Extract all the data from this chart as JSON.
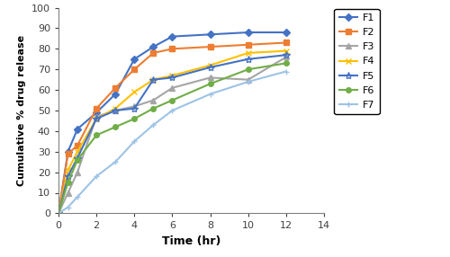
{
  "time": [
    0,
    0.5,
    1,
    2,
    3,
    4,
    5,
    6,
    8,
    10,
    12
  ],
  "F1": [
    0,
    30,
    41,
    49,
    58,
    75,
    81,
    86,
    87,
    88,
    88
  ],
  "F2": [
    0,
    29,
    33,
    51,
    61,
    70,
    78,
    80,
    81,
    82,
    83
  ],
  "F3": [
    0,
    10,
    20,
    47,
    50,
    52,
    55,
    61,
    66,
    65,
    76
  ],
  "F4": [
    0,
    21,
    30,
    46,
    51,
    59,
    65,
    67,
    72,
    78,
    79
  ],
  "F5": [
    0,
    18,
    27,
    46,
    50,
    51,
    65,
    66,
    71,
    75,
    77
  ],
  "F6": [
    0,
    15,
    26,
    38,
    42,
    46,
    51,
    55,
    63,
    70,
    73
  ],
  "F7": [
    0,
    3,
    8,
    18,
    25,
    35,
    43,
    50,
    58,
    64,
    69
  ],
  "colors": [
    "#4472C4",
    "#ED7D31",
    "#A5A5A5",
    "#FFC000",
    "#4472C4",
    "#70AD47",
    "#9DC3E6"
  ],
  "marker_colors": [
    "#4472C4",
    "#ED7D31",
    "#A5A5A5",
    "#FFC000",
    "#4472C4",
    "#70AD47",
    "#9DC3E6"
  ],
  "markers": [
    "o",
    "s",
    "^",
    "x",
    "*",
    "o",
    "+"
  ],
  "labels": [
    "F1",
    "F2",
    "F3",
    "F4",
    "F5",
    "F6",
    "F7"
  ],
  "xlabel": "Time (hr)",
  "ylabel": "Cumulative % drug release",
  "xlim": [
    0,
    14
  ],
  "ylim": [
    0,
    100
  ],
  "xticks": [
    0,
    2,
    4,
    6,
    8,
    10,
    12,
    14
  ],
  "yticks": [
    0,
    10,
    20,
    30,
    40,
    50,
    60,
    70,
    80,
    90,
    100
  ],
  "linewidth": 1.5,
  "markersize": 4
}
